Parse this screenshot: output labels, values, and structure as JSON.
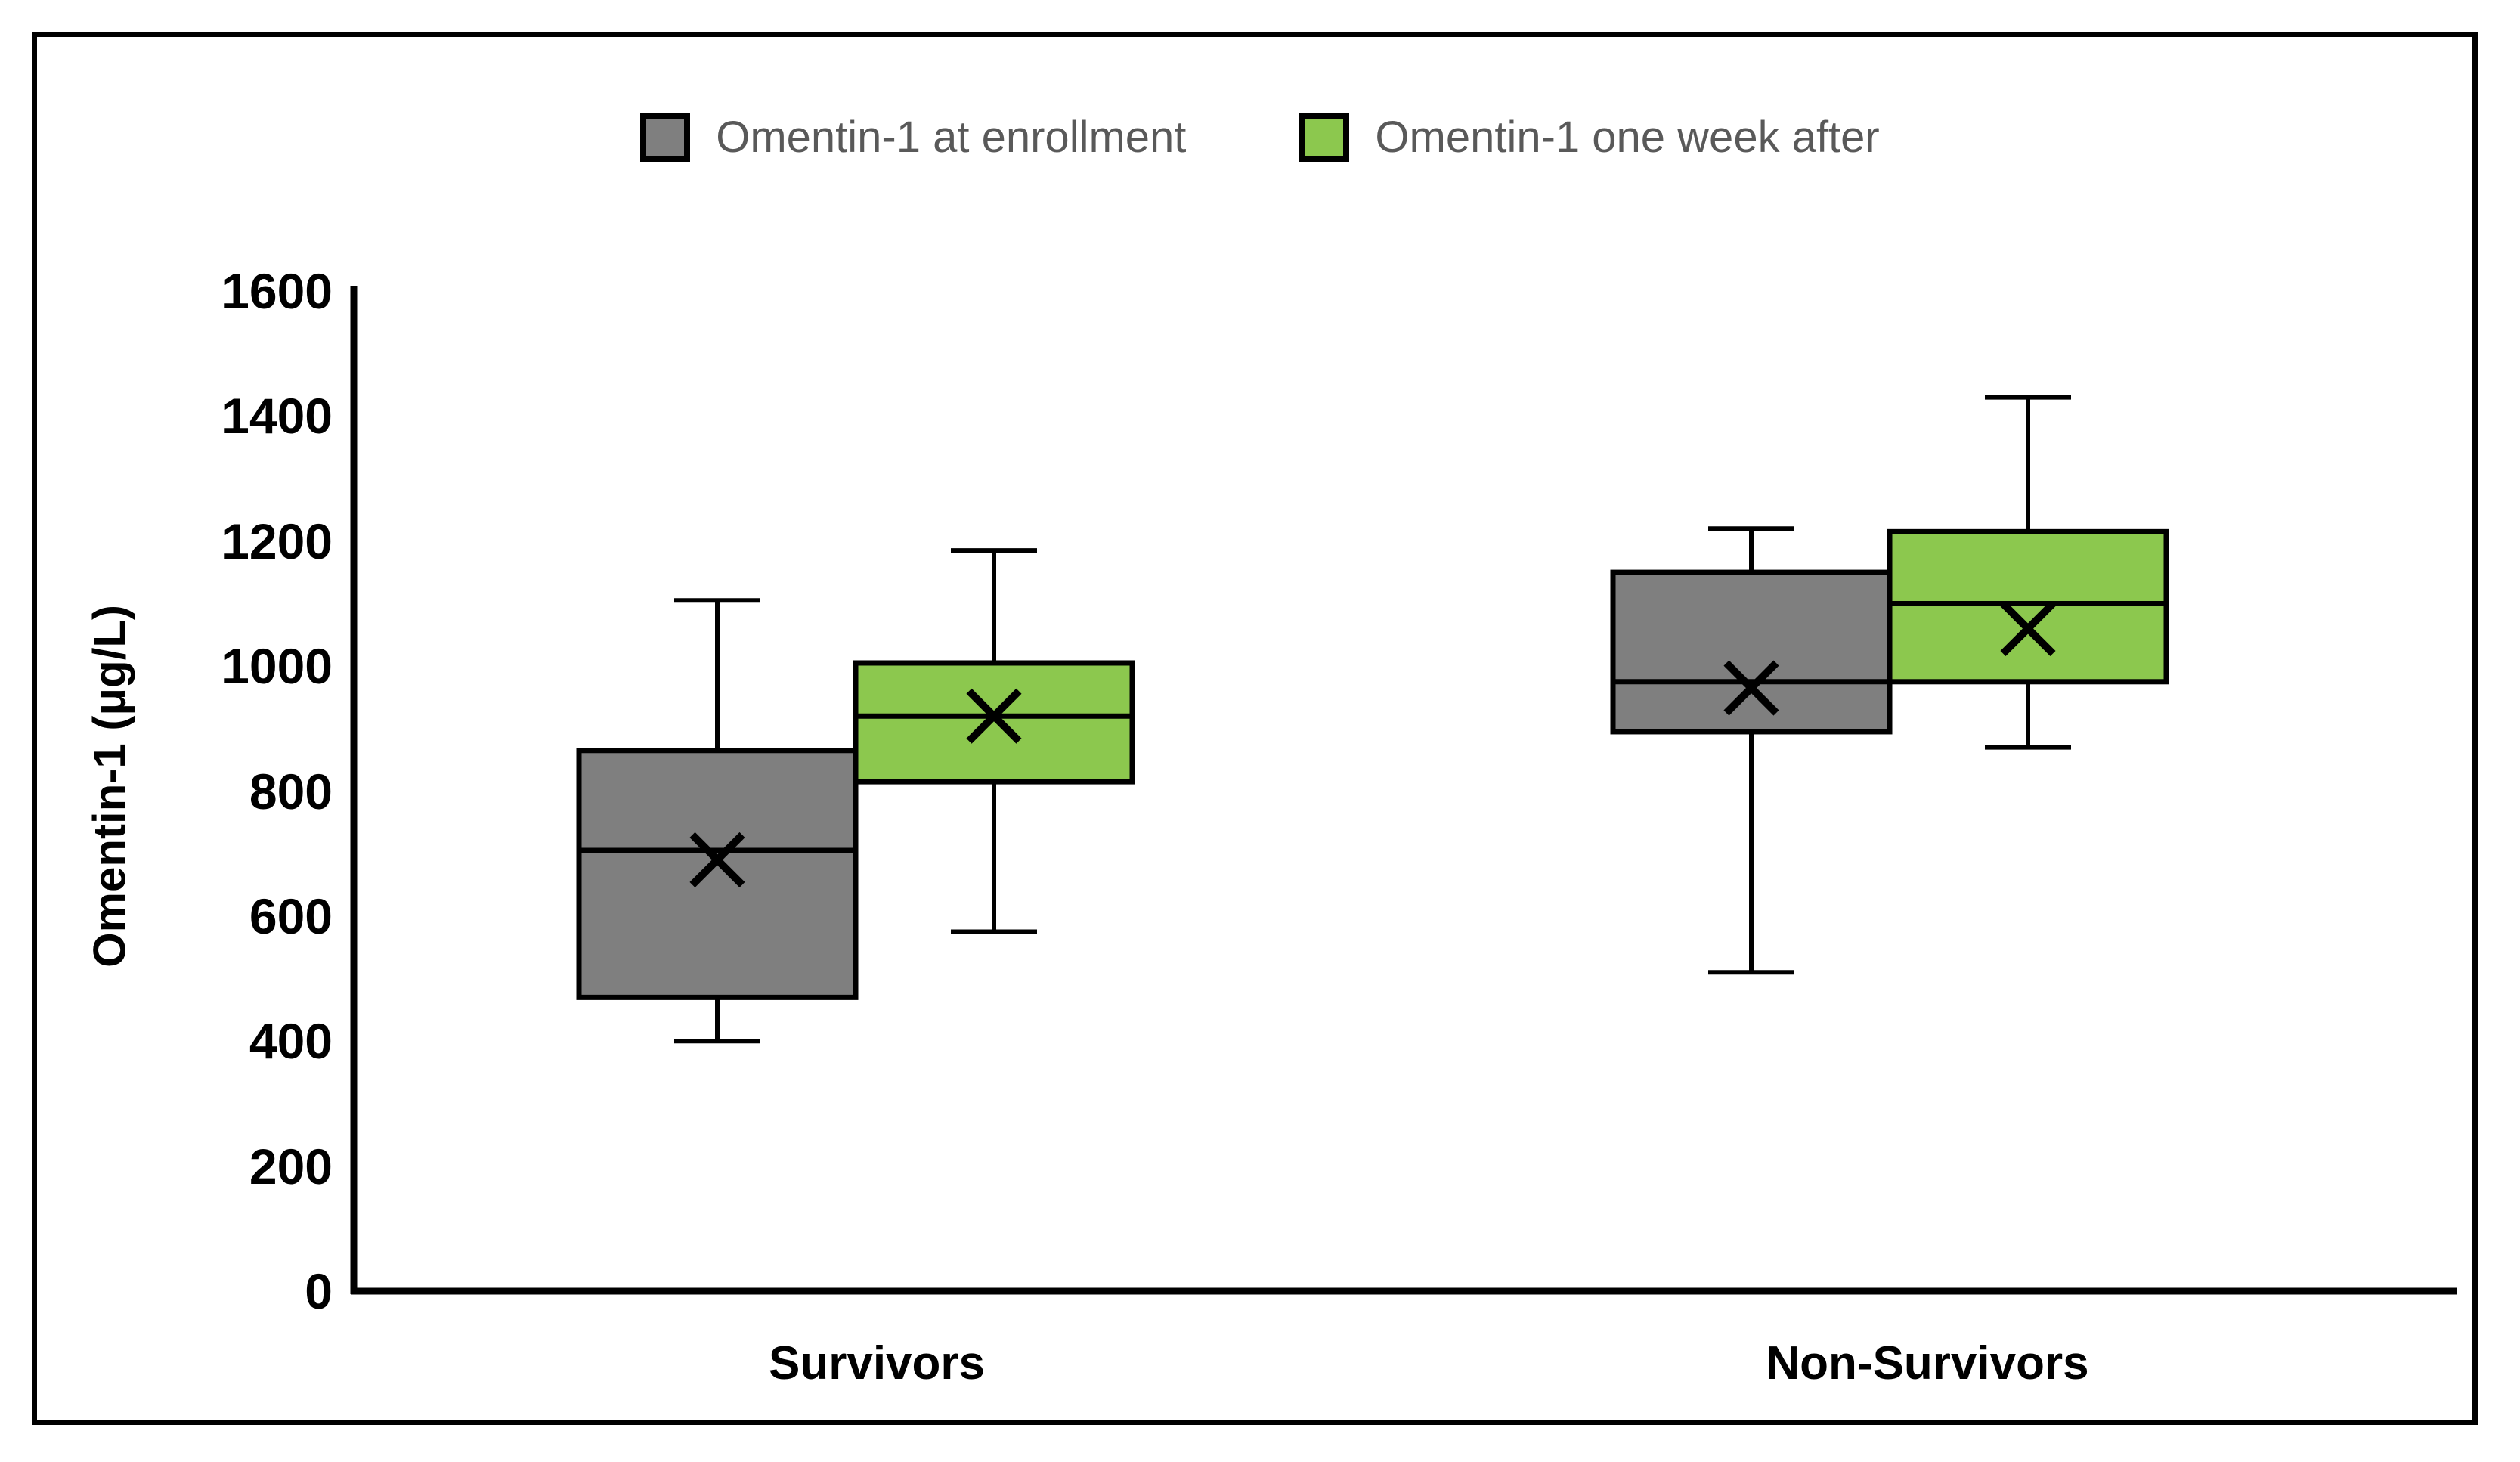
{
  "chart_data": {
    "type": "boxplot",
    "categories": [
      "Survivors",
      "Non-Survivors"
    ],
    "series": [
      {
        "name": "Omentin-1 at enrollment",
        "color": "#7F7F7F",
        "boxes": [
          {
            "category": "Survivors",
            "whisker_low": 400,
            "q1": 470,
            "median": 705,
            "mean": 690,
            "q3": 865,
            "whisker_high": 1105
          },
          {
            "category": "Non-Survivors",
            "whisker_low": 510,
            "q1": 895,
            "median": 975,
            "mean": 965,
            "q3": 1150,
            "whisker_high": 1220
          }
        ]
      },
      {
        "name": "Omentin-1 one week after",
        "color": "#8CC84E",
        "boxes": [
          {
            "category": "Survivors",
            "whisker_low": 575,
            "q1": 815,
            "median": 920,
            "mean": 920,
            "q3": 1005,
            "whisker_high": 1185
          },
          {
            "category": "Non-Survivors",
            "whisker_low": 870,
            "q1": 975,
            "median": 1100,
            "mean": 1060,
            "q3": 1215,
            "whisker_high": 1430
          }
        ]
      }
    ],
    "title": "",
    "xlabel": "",
    "ylabel": "Omentin-1 (μg/L)",
    "ylim": [
      0,
      1600
    ],
    "ytick_step": 200,
    "yticks": [
      0,
      200,
      400,
      600,
      800,
      1000,
      1200,
      1400,
      1600
    ],
    "grid": false,
    "legend_position": "top",
    "mean_marker": "x",
    "line_color": "#000000"
  }
}
